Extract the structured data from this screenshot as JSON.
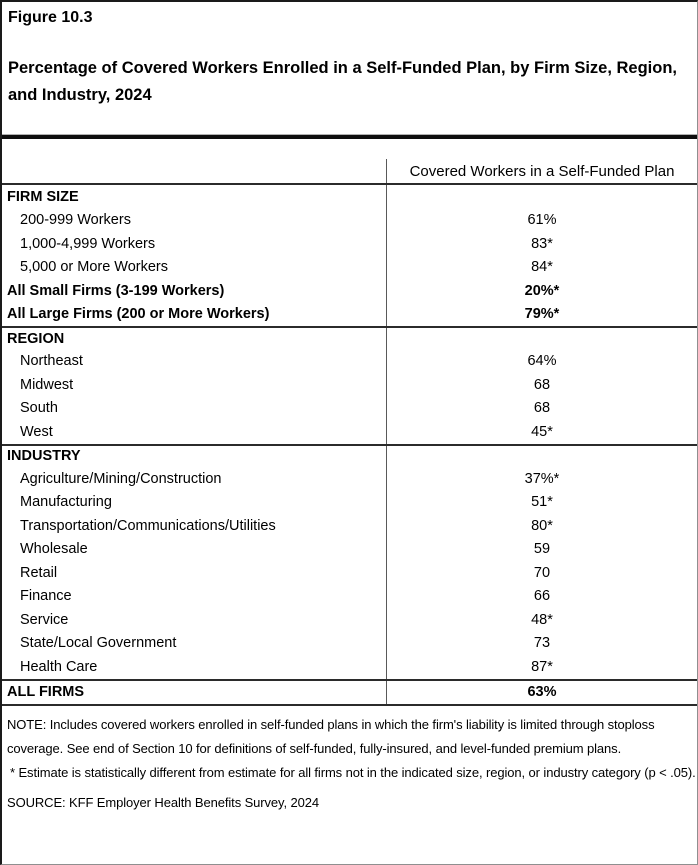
{
  "figure": {
    "label": "Figure 10.3",
    "title": "Percentage of Covered Workers Enrolled in a Self-Funded Plan, by Firm Size, Region, and Industry, 2024"
  },
  "table": {
    "value_column_header": "Covered Workers in a Self-Funded Plan",
    "rows": [
      {
        "label": "FIRM SIZE",
        "value": "",
        "style": "section",
        "rule_above": false
      },
      {
        "label": "200-999 Workers",
        "value": "61%",
        "style": "sub",
        "rule_above": false
      },
      {
        "label": "1,000-4,999 Workers",
        "value": "83*",
        "style": "sub",
        "rule_above": false
      },
      {
        "label": "5,000 or More Workers",
        "value": "84*",
        "style": "sub",
        "rule_above": false
      },
      {
        "label": "All Small Firms (3-199 Workers)",
        "value": "20%*",
        "style": "bold",
        "rule_above": false
      },
      {
        "label": "All Large Firms (200 or More Workers)",
        "value": "79%*",
        "style": "bold",
        "rule_above": false
      },
      {
        "label": "REGION",
        "value": "",
        "style": "section",
        "rule_above": true
      },
      {
        "label": "Northeast",
        "value": "64%",
        "style": "sub",
        "rule_above": false
      },
      {
        "label": "Midwest",
        "value": "68",
        "style": "sub",
        "rule_above": false
      },
      {
        "label": "South",
        "value": "68",
        "style": "sub",
        "rule_above": false
      },
      {
        "label": "West",
        "value": "45*",
        "style": "sub",
        "rule_above": false
      },
      {
        "label": "INDUSTRY",
        "value": "",
        "style": "section",
        "rule_above": true
      },
      {
        "label": "Agriculture/Mining/Construction",
        "value": "37%*",
        "style": "sub",
        "rule_above": false
      },
      {
        "label": "Manufacturing",
        "value": "51*",
        "style": "sub",
        "rule_above": false
      },
      {
        "label": "Transportation/Communications/Utilities",
        "value": "80*",
        "style": "sub",
        "rule_above": false
      },
      {
        "label": "Wholesale",
        "value": "59",
        "style": "sub",
        "rule_above": false
      },
      {
        "label": "Retail",
        "value": "70",
        "style": "sub",
        "rule_above": false
      },
      {
        "label": "Finance",
        "value": "66",
        "style": "sub",
        "rule_above": false
      },
      {
        "label": "Service",
        "value": "48*",
        "style": "sub",
        "rule_above": false
      },
      {
        "label": "State/Local Government",
        "value": "73",
        "style": "sub",
        "rule_above": false
      },
      {
        "label": "Health Care",
        "value": "87*",
        "style": "sub",
        "rule_above": false
      },
      {
        "label": "ALL FIRMS",
        "value": "63%",
        "style": "bold",
        "rule_above": true,
        "allfirms": true
      }
    ]
  },
  "chart_data": {
    "type": "table",
    "title": "Percentage of Covered Workers Enrolled in a Self-Funded Plan, by Firm Size, Region, and Industry, 2024",
    "columns": [
      "Category",
      "Covered Workers in a Self-Funded Plan"
    ],
    "sections": [
      {
        "name": "FIRM SIZE",
        "rows": [
          [
            "200-999 Workers",
            61
          ],
          [
            "1,000-4,999 Workers",
            83
          ],
          [
            "5,000 or More Workers",
            84
          ],
          [
            "All Small Firms (3-199 Workers)",
            20
          ],
          [
            "All Large Firms (200 or More Workers)",
            79
          ]
        ]
      },
      {
        "name": "REGION",
        "rows": [
          [
            "Northeast",
            64
          ],
          [
            "Midwest",
            68
          ],
          [
            "South",
            68
          ],
          [
            "West",
            45
          ]
        ]
      },
      {
        "name": "INDUSTRY",
        "rows": [
          [
            "Agriculture/Mining/Construction",
            37
          ],
          [
            "Manufacturing",
            51
          ],
          [
            "Transportation/Communications/Utilities",
            80
          ],
          [
            "Wholesale",
            59
          ],
          [
            "Retail",
            70
          ],
          [
            "Finance",
            66
          ],
          [
            "Service",
            48
          ],
          [
            "State/Local Government",
            73
          ],
          [
            "Health Care",
            87
          ]
        ]
      },
      {
        "name": "ALL FIRMS",
        "rows": [
          [
            "ALL FIRMS",
            63
          ]
        ]
      }
    ],
    "starred_values_note": "* indicates statistically different estimate"
  },
  "notes": {
    "note": "NOTE: Includes covered workers enrolled in self-funded plans in which the firm's liability is limited through stoploss coverage. See end of Section 10 for definitions of self-funded, fully-insured, and level-funded premium plans.",
    "asterisk": "* Estimate is statistically different from estimate for all firms not in the indicated size, region, or industry category (p < .05).",
    "source": "SOURCE: KFF Employer Health Benefits Survey, 2024"
  }
}
